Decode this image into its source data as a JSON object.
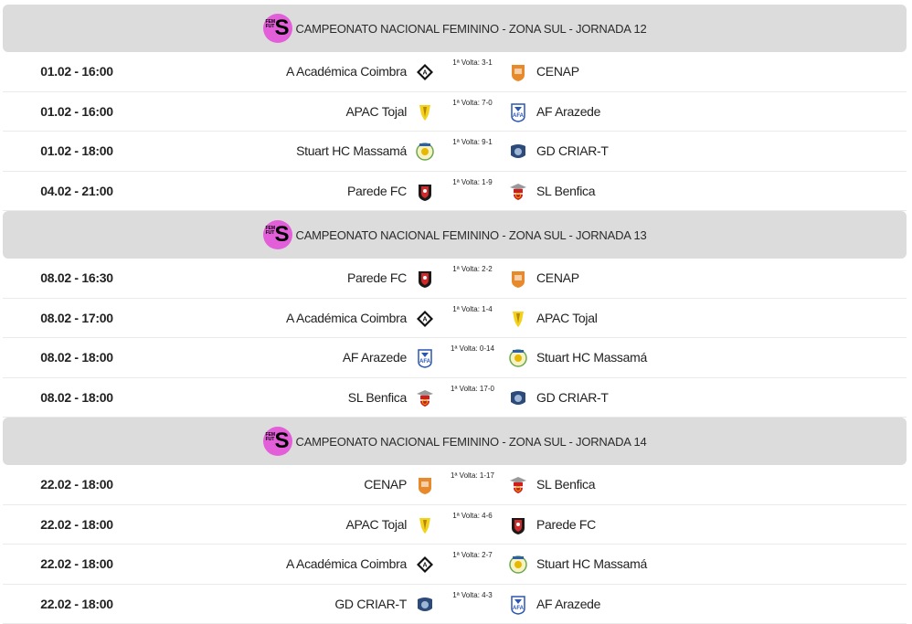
{
  "colors": {
    "header_bg": "#dcdcdc",
    "logo_pink": "#e35fd9",
    "divider": "#eaeaea"
  },
  "sections": [
    {
      "title": "CAMPEONATO NACIONAL FEMININO - ZONA SUL - JORNADA 12",
      "logo_letter": "S",
      "logo_small": "FEM FUT",
      "matches": [
        {
          "date": "01.02 - 16:00",
          "home": "A Académica Coimbra",
          "home_icon": "academica-crest",
          "score": "1ª Volta: 3-1",
          "away": "CENAP",
          "away_icon": "cenap-crest"
        },
        {
          "date": "01.02 - 16:00",
          "home": "APAC Tojal",
          "home_icon": "apac-crest",
          "score": "1ª Volta: 7-0",
          "away": "AF Arazede",
          "away_icon": "arazede-crest"
        },
        {
          "date": "01.02 - 18:00",
          "home": "Stuart HC Massamá",
          "home_icon": "stuart-crest",
          "score": "1ª Volta: 9-1",
          "away": "GD CRIAR-T",
          "away_icon": "criart-crest"
        },
        {
          "date": "04.02 - 21:00",
          "home": "Parede FC",
          "home_icon": "parede-crest",
          "score": "1ª Volta: 1-9",
          "away": "SL Benfica",
          "away_icon": "benfica-crest"
        }
      ]
    },
    {
      "title": "CAMPEONATO NACIONAL FEMININO - ZONA SUL - JORNADA 13",
      "logo_letter": "S",
      "logo_small": "FEM FUT",
      "matches": [
        {
          "date": "08.02 - 16:30",
          "home": "Parede FC",
          "home_icon": "parede-crest",
          "score": "1ª Volta: 2-2",
          "away": "CENAP",
          "away_icon": "cenap-crest"
        },
        {
          "date": "08.02 - 17:00",
          "home": "A Académica Coimbra",
          "home_icon": "academica-crest",
          "score": "1ª Volta: 1-4",
          "away": "APAC Tojal",
          "away_icon": "apac-crest"
        },
        {
          "date": "08.02 - 18:00",
          "home": "AF Arazede",
          "home_icon": "arazede-crest",
          "score": "1ª Volta: 0-14",
          "away": "Stuart HC Massamá",
          "away_icon": "stuart-crest"
        },
        {
          "date": "08.02 - 18:00",
          "home": "SL Benfica",
          "home_icon": "benfica-crest",
          "score": "1ª Volta: 17-0",
          "away": "GD CRIAR-T",
          "away_icon": "criart-crest"
        }
      ]
    },
    {
      "title": "CAMPEONATO NACIONAL FEMININO - ZONA SUL - JORNADA 14",
      "logo_letter": "S",
      "logo_small": "FEM FUT",
      "matches": [
        {
          "date": "22.02 - 18:00",
          "home": "CENAP",
          "home_icon": "cenap-crest",
          "score": "1ª Volta: 1-17",
          "away": "SL Benfica",
          "away_icon": "benfica-crest"
        },
        {
          "date": "22.02 - 18:00",
          "home": "APAC Tojal",
          "home_icon": "apac-crest",
          "score": "1ª Volta: 4-6",
          "away": "Parede FC",
          "away_icon": "parede-crest"
        },
        {
          "date": "22.02 - 18:00",
          "home": "A Académica Coimbra",
          "home_icon": "academica-crest",
          "score": "1ª Volta: 2-7",
          "away": "Stuart HC Massamá",
          "away_icon": "stuart-crest"
        },
        {
          "date": "22.02 - 18:00",
          "home": "GD CRIAR-T",
          "home_icon": "criart-crest",
          "score": "1ª Volta: 4-3",
          "away": "AF Arazede",
          "away_icon": "arazede-crest"
        }
      ]
    }
  ]
}
